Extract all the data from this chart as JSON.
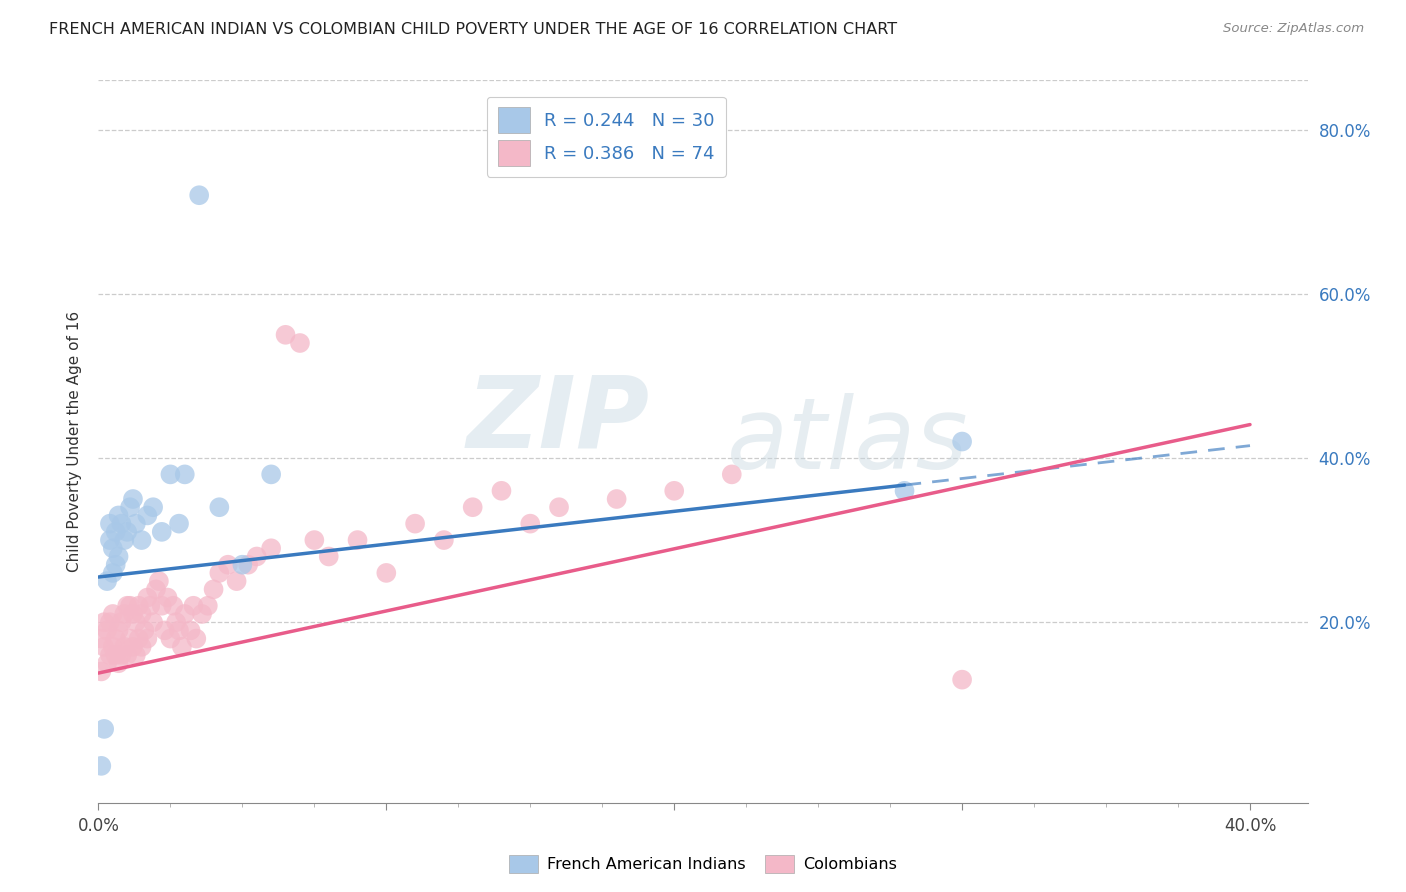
{
  "title": "FRENCH AMERICAN INDIAN VS COLOMBIAN CHILD POVERTY UNDER THE AGE OF 16 CORRELATION CHART",
  "source": "Source: ZipAtlas.com",
  "ylabel": "Child Poverty Under the Age of 16",
  "xlim": [
    0.0,
    0.42
  ],
  "ylim": [
    -0.02,
    0.86
  ],
  "color_blue": "#a8c8e8",
  "color_pink": "#f4b8c8",
  "color_blue_line": "#3a7abf",
  "color_pink_line": "#e85c8a",
  "color_blue_text": "#3a7abf",
  "watermark_zip": "ZIP",
  "watermark_atlas": "atlas",
  "legend1_label": "R = 0.244   N = 30",
  "legend2_label": "R = 0.386   N = 74",
  "bottom_legend1": "French American Indians",
  "bottom_legend2": "Colombians",
  "french_x": [
    0.001,
    0.002,
    0.003,
    0.004,
    0.004,
    0.005,
    0.005,
    0.006,
    0.006,
    0.007,
    0.007,
    0.008,
    0.009,
    0.01,
    0.011,
    0.012,
    0.013,
    0.015,
    0.017,
    0.019,
    0.022,
    0.025,
    0.028,
    0.03,
    0.035,
    0.042,
    0.05,
    0.06,
    0.28,
    0.3
  ],
  "french_y": [
    0.025,
    0.07,
    0.25,
    0.3,
    0.32,
    0.26,
    0.29,
    0.27,
    0.31,
    0.28,
    0.33,
    0.32,
    0.3,
    0.31,
    0.34,
    0.35,
    0.32,
    0.3,
    0.33,
    0.34,
    0.31,
    0.38,
    0.32,
    0.38,
    0.72,
    0.34,
    0.27,
    0.38,
    0.36,
    0.42
  ],
  "colombian_x": [
    0.001,
    0.001,
    0.002,
    0.002,
    0.003,
    0.003,
    0.004,
    0.004,
    0.005,
    0.005,
    0.006,
    0.006,
    0.007,
    0.007,
    0.008,
    0.008,
    0.009,
    0.009,
    0.01,
    0.01,
    0.011,
    0.011,
    0.012,
    0.012,
    0.013,
    0.013,
    0.014,
    0.014,
    0.015,
    0.015,
    0.016,
    0.017,
    0.017,
    0.018,
    0.019,
    0.02,
    0.021,
    0.022,
    0.023,
    0.024,
    0.025,
    0.026,
    0.027,
    0.028,
    0.029,
    0.03,
    0.032,
    0.033,
    0.034,
    0.036,
    0.038,
    0.04,
    0.042,
    0.045,
    0.048,
    0.052,
    0.055,
    0.06,
    0.065,
    0.07,
    0.075,
    0.08,
    0.09,
    0.1,
    0.11,
    0.12,
    0.13,
    0.14,
    0.15,
    0.16,
    0.18,
    0.2,
    0.22,
    0.3
  ],
  "colombian_y": [
    0.14,
    0.18,
    0.17,
    0.2,
    0.15,
    0.19,
    0.16,
    0.2,
    0.17,
    0.21,
    0.16,
    0.18,
    0.15,
    0.19,
    0.16,
    0.2,
    0.17,
    0.21,
    0.16,
    0.22,
    0.18,
    0.22,
    0.17,
    0.21,
    0.16,
    0.2,
    0.18,
    0.22,
    0.17,
    0.21,
    0.19,
    0.23,
    0.18,
    0.22,
    0.2,
    0.24,
    0.25,
    0.22,
    0.19,
    0.23,
    0.18,
    0.22,
    0.2,
    0.19,
    0.17,
    0.21,
    0.19,
    0.22,
    0.18,
    0.21,
    0.22,
    0.24,
    0.26,
    0.27,
    0.25,
    0.27,
    0.28,
    0.29,
    0.55,
    0.54,
    0.3,
    0.28,
    0.3,
    0.26,
    0.32,
    0.3,
    0.34,
    0.36,
    0.32,
    0.34,
    0.35,
    0.36,
    0.38,
    0.13
  ],
  "trend_blue_x0": 0.0,
  "trend_blue_y0": 0.255,
  "trend_blue_x1": 0.3,
  "trend_blue_y1": 0.375,
  "trend_pink_x0": 0.0,
  "trend_pink_y0": 0.138,
  "trend_pink_x1": 0.3,
  "trend_pink_y1": 0.365
}
